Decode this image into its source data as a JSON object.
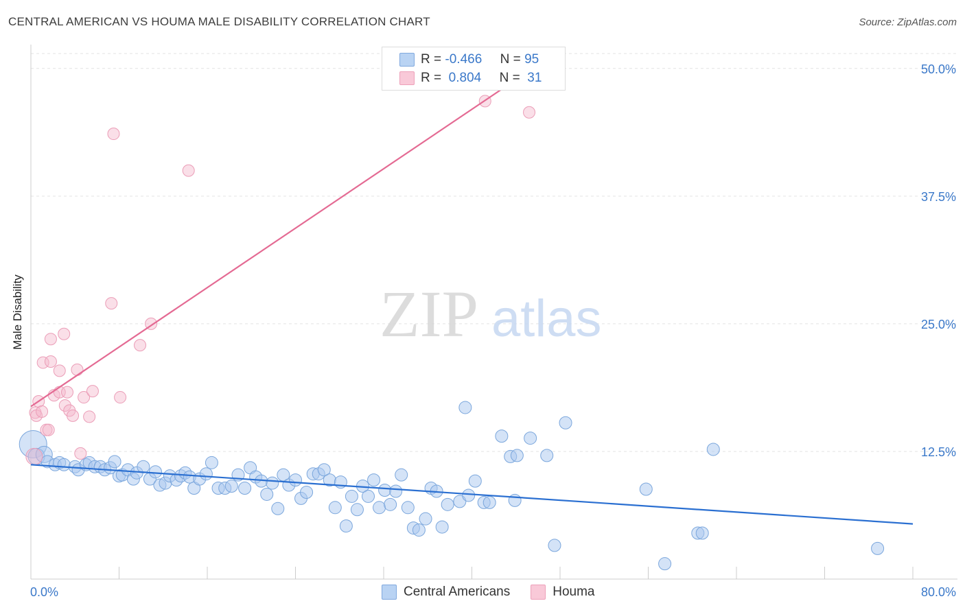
{
  "header": {
    "title": "CENTRAL AMERICAN VS HOUMA MALE DISABILITY CORRELATION CHART",
    "source": "Source: ZipAtlas.com"
  },
  "watermark": {
    "zip": "ZIP",
    "atlas": "atlas"
  },
  "colors": {
    "blue": "#a9c8ef",
    "blue_line": "#2a6fd1",
    "pink": "#f5b8cc",
    "pink_line": "#e46a93",
    "axis_label": "#3a78c9"
  },
  "legend": {
    "rows": [
      {
        "r_label": "R =",
        "r_value": "-0.466",
        "n_label": "N =",
        "n_value": "95"
      },
      {
        "r_label": "R =",
        "r_value": "0.804",
        "n_label": "N =",
        "n_value": "31"
      }
    ]
  },
  "bottom_legend": [
    "Central Americans",
    "Houma"
  ],
  "chart_data": {
    "type": "scatter",
    "title": "CENTRAL AMERICAN VS HOUMA MALE DISABILITY CORRELATION CHART",
    "ylabel": "Male Disability",
    "xlabel": "",
    "xlim": [
      0,
      80
    ],
    "ylim": [
      0,
      52
    ],
    "x_tick_labels": [
      "0.0%",
      "80.0%"
    ],
    "y_ticks": [
      12.5,
      25.0,
      37.5,
      50.0
    ],
    "y_tick_labels": [
      "12.5%",
      "25.0%",
      "37.5%",
      "50.0%"
    ],
    "grid": true,
    "legend_position": "top-center",
    "series": [
      {
        "name": "Central Americans",
        "r": -0.466,
        "n": 95,
        "trend": {
          "x": [
            0,
            80
          ],
          "y": [
            11.2,
            5.4
          ]
        },
        "points": [
          [
            0.2,
            13.2
          ],
          [
            0.5,
            12.0
          ],
          [
            1.2,
            12.2
          ],
          [
            1.5,
            11.5
          ],
          [
            2.2,
            11.2
          ],
          [
            2.6,
            11.4
          ],
          [
            3.0,
            11.2
          ],
          [
            4.0,
            11.0
          ],
          [
            4.3,
            10.7
          ],
          [
            5.0,
            11.2
          ],
          [
            5.3,
            11.4
          ],
          [
            5.8,
            11.0
          ],
          [
            6.3,
            11.0
          ],
          [
            6.7,
            10.7
          ],
          [
            7.2,
            10.9
          ],
          [
            7.6,
            11.5
          ],
          [
            8.0,
            10.1
          ],
          [
            8.3,
            10.2
          ],
          [
            8.8,
            10.7
          ],
          [
            9.3,
            9.8
          ],
          [
            9.6,
            10.4
          ],
          [
            10.2,
            11.0
          ],
          [
            10.8,
            9.8
          ],
          [
            11.3,
            10.5
          ],
          [
            11.7,
            9.2
          ],
          [
            12.2,
            9.4
          ],
          [
            12.6,
            10.1
          ],
          [
            13.2,
            9.7
          ],
          [
            13.6,
            10.1
          ],
          [
            14.0,
            10.4
          ],
          [
            14.4,
            10.0
          ],
          [
            14.8,
            8.9
          ],
          [
            15.3,
            9.8
          ],
          [
            15.9,
            10.3
          ],
          [
            16.4,
            11.4
          ],
          [
            17.0,
            8.9
          ],
          [
            17.6,
            8.9
          ],
          [
            18.2,
            9.1
          ],
          [
            18.8,
            10.2
          ],
          [
            19.4,
            8.9
          ],
          [
            19.9,
            10.9
          ],
          [
            20.4,
            10.0
          ],
          [
            20.9,
            9.6
          ],
          [
            21.4,
            8.3
          ],
          [
            21.9,
            9.4
          ],
          [
            22.4,
            6.9
          ],
          [
            22.9,
            10.2
          ],
          [
            23.4,
            9.2
          ],
          [
            24.0,
            9.7
          ],
          [
            24.5,
            7.9
          ],
          [
            25.0,
            8.5
          ],
          [
            25.6,
            10.3
          ],
          [
            26.1,
            10.3
          ],
          [
            26.6,
            10.7
          ],
          [
            27.1,
            9.7
          ],
          [
            27.6,
            7.0
          ],
          [
            28.1,
            9.5
          ],
          [
            28.6,
            5.2
          ],
          [
            29.1,
            8.1
          ],
          [
            29.6,
            6.8
          ],
          [
            30.1,
            9.1
          ],
          [
            30.6,
            8.1
          ],
          [
            31.1,
            9.7
          ],
          [
            31.6,
            7.0
          ],
          [
            32.1,
            8.7
          ],
          [
            32.6,
            7.3
          ],
          [
            33.1,
            8.6
          ],
          [
            33.6,
            10.2
          ],
          [
            34.2,
            7.0
          ],
          [
            34.7,
            5.0
          ],
          [
            35.2,
            4.8
          ],
          [
            35.8,
            5.9
          ],
          [
            36.3,
            8.9
          ],
          [
            36.8,
            8.6
          ],
          [
            37.3,
            5.1
          ],
          [
            37.8,
            7.3
          ],
          [
            38.9,
            7.6
          ],
          [
            39.7,
            8.2
          ],
          [
            40.3,
            9.6
          ],
          [
            41.1,
            7.5
          ],
          [
            41.6,
            7.5
          ],
          [
            42.7,
            14.0
          ],
          [
            43.5,
            12.0
          ],
          [
            43.9,
            7.7
          ],
          [
            44.1,
            12.1
          ],
          [
            45.3,
            13.8
          ],
          [
            46.8,
            12.1
          ],
          [
            47.5,
            3.3
          ],
          [
            48.5,
            15.3
          ],
          [
            55.8,
            8.8
          ],
          [
            57.5,
            1.5
          ],
          [
            60.5,
            4.5
          ],
          [
            60.9,
            4.5
          ],
          [
            61.9,
            12.7
          ],
          [
            76.8,
            3.0
          ],
          [
            39.4,
            16.8
          ]
        ]
      },
      {
        "name": "Houma",
        "r": 0.804,
        "n": 31,
        "trend": {
          "x": [
            0,
            45.5
          ],
          "y": [
            16.9,
            50.0
          ]
        },
        "points": [
          [
            0.3,
            12.0
          ],
          [
            0.4,
            16.3
          ],
          [
            0.5,
            16.0
          ],
          [
            0.7,
            17.4
          ],
          [
            1.0,
            16.4
          ],
          [
            1.1,
            21.2
          ],
          [
            1.4,
            14.6
          ],
          [
            1.6,
            14.6
          ],
          [
            1.8,
            23.5
          ],
          [
            1.8,
            21.3
          ],
          [
            2.1,
            18.0
          ],
          [
            2.6,
            18.3
          ],
          [
            2.6,
            20.4
          ],
          [
            3.0,
            24.0
          ],
          [
            3.1,
            17.0
          ],
          [
            3.3,
            18.3
          ],
          [
            3.5,
            16.5
          ],
          [
            3.8,
            16.0
          ],
          [
            4.2,
            20.5
          ],
          [
            4.5,
            12.3
          ],
          [
            4.8,
            17.8
          ],
          [
            5.3,
            15.9
          ],
          [
            5.6,
            18.4
          ],
          [
            7.3,
            27.0
          ],
          [
            7.5,
            43.6
          ],
          [
            8.1,
            17.8
          ],
          [
            9.9,
            22.9
          ],
          [
            10.9,
            25.0
          ],
          [
            14.3,
            40.0
          ],
          [
            41.2,
            46.8
          ],
          [
            45.2,
            45.7
          ]
        ]
      }
    ]
  }
}
